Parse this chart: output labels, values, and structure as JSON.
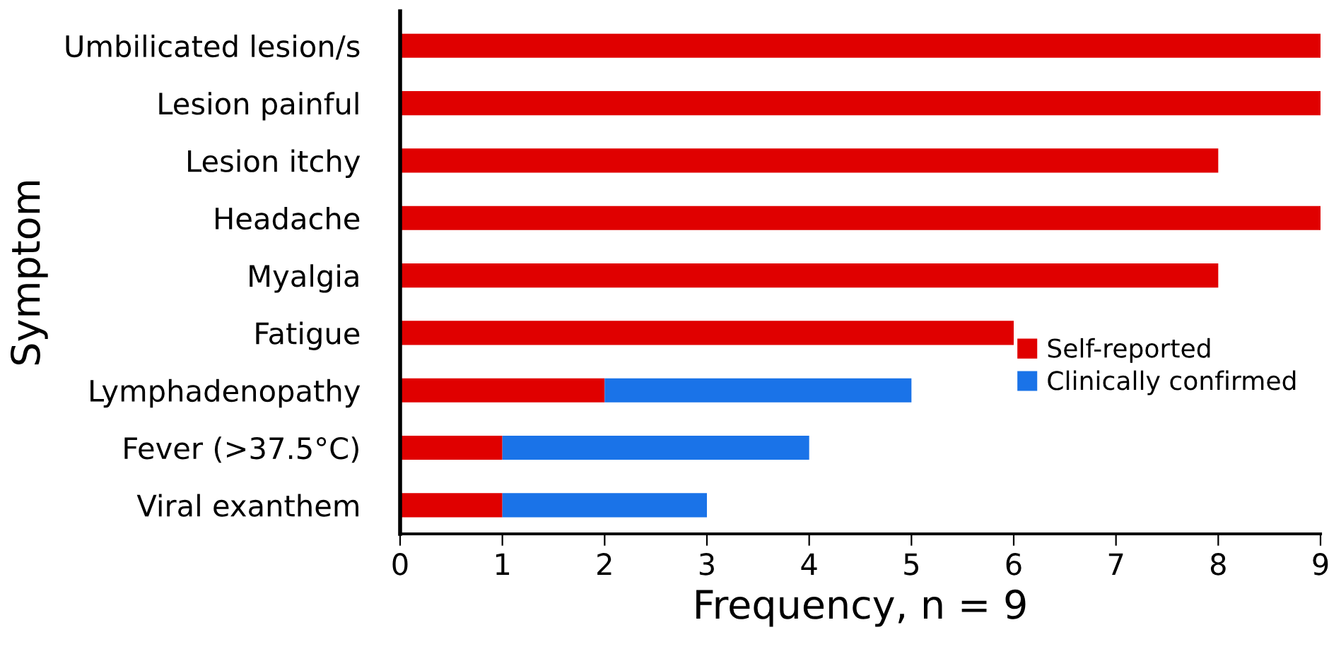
{
  "chart_data": {
    "type": "bar",
    "orientation": "horizontal",
    "stacked": true,
    "categories": [
      "Umbilicated lesion/s",
      "Lesion painful",
      "Lesion itchy",
      "Headache",
      "Myalgia",
      "Fatigue",
      "Lymphadenopathy",
      "Fever (>37.5°C)",
      "Viral exanthem"
    ],
    "series": [
      {
        "name": "Self-reported",
        "color": "#e00000",
        "values": [
          9,
          9,
          8,
          9,
          8,
          6,
          2,
          1,
          1
        ]
      },
      {
        "name": "Clinically confirmed",
        "color": "#1a73e8",
        "values": [
          null,
          null,
          null,
          null,
          null,
          null,
          3,
          3,
          2
        ]
      }
    ],
    "xlabel": "Frequency, n = 9",
    "ylabel": "Symptom",
    "xlim": [
      0,
      9
    ],
    "xticks": [
      0,
      1,
      2,
      3,
      4,
      5,
      6,
      7,
      8,
      9
    ],
    "grid": false,
    "legend": "right"
  }
}
